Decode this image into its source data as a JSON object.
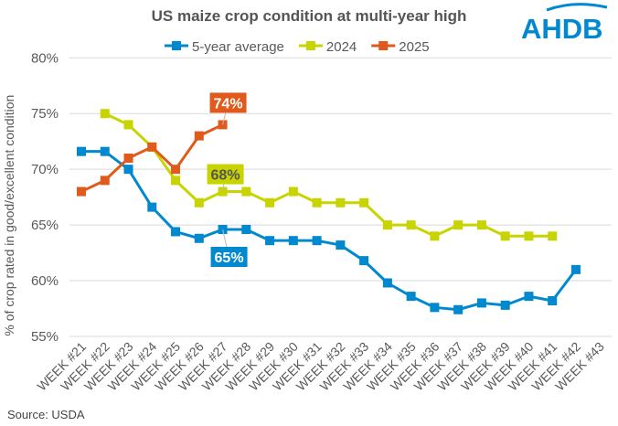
{
  "chart_data": {
    "type": "line",
    "title": "US maize crop condition at multi-year high",
    "xlabel": "",
    "ylabel": "% of crop rated in good/excellent condition",
    "ylim": [
      55,
      80
    ],
    "yticks": [
      55,
      60,
      65,
      70,
      75,
      80
    ],
    "ytick_labels": [
      "55%",
      "60%",
      "65%",
      "70%",
      "75%",
      "80%"
    ],
    "grid": "horizontal",
    "legend_placement": "top",
    "categories": [
      "WEEK #21",
      "WEEK #22",
      "WEEK #23",
      "WEEK #24",
      "WEEK #25",
      "WEEK #26",
      "WEEK #27",
      "WEEK #28",
      "WEEK #29",
      "WEEK #30",
      "WEEK #31",
      "WEEK #32",
      "WEEK #33",
      "WEEK #34",
      "WEEK #35",
      "WEEK #36",
      "WEEK #37",
      "WEEK #38",
      "WEEK #39",
      "WEEK #40",
      "WEEK #41",
      "WEEK #42",
      "WEEK #43"
    ],
    "series": [
      {
        "name": "5-year average",
        "color": "#0089cf",
        "values": [
          71.6,
          71.6,
          70.0,
          66.6,
          64.4,
          63.8,
          64.6,
          64.6,
          63.6,
          63.6,
          63.6,
          63.2,
          61.8,
          59.8,
          58.6,
          57.6,
          57.4,
          58.0,
          57.8,
          58.6,
          58.2,
          61.0,
          null
        ]
      },
      {
        "name": "2024",
        "color": "#c8d400",
        "values": [
          null,
          75,
          74,
          72,
          69,
          67,
          68,
          68,
          67,
          68,
          67,
          67,
          67,
          65,
          65,
          64,
          65,
          65,
          64,
          64,
          64,
          null,
          null
        ]
      },
      {
        "name": "2025",
        "color": "#e05a1b",
        "values": [
          68,
          69,
          71,
          72,
          70,
          73,
          74,
          null,
          null,
          null,
          null,
          null,
          null,
          null,
          null,
          null,
          null,
          null,
          null,
          null,
          null,
          null,
          null
        ]
      }
    ],
    "annotations": [
      {
        "series": "2025",
        "category": "WEEK #27",
        "text": "74%"
      },
      {
        "series": "2024",
        "category": "WEEK #27",
        "text": "68%"
      },
      {
        "series": "5-year average",
        "category": "WEEK #27",
        "text": "65%"
      }
    ]
  },
  "source": "Source: USDA",
  "logo": {
    "text": "AHDB",
    "color": "#0089cf"
  }
}
